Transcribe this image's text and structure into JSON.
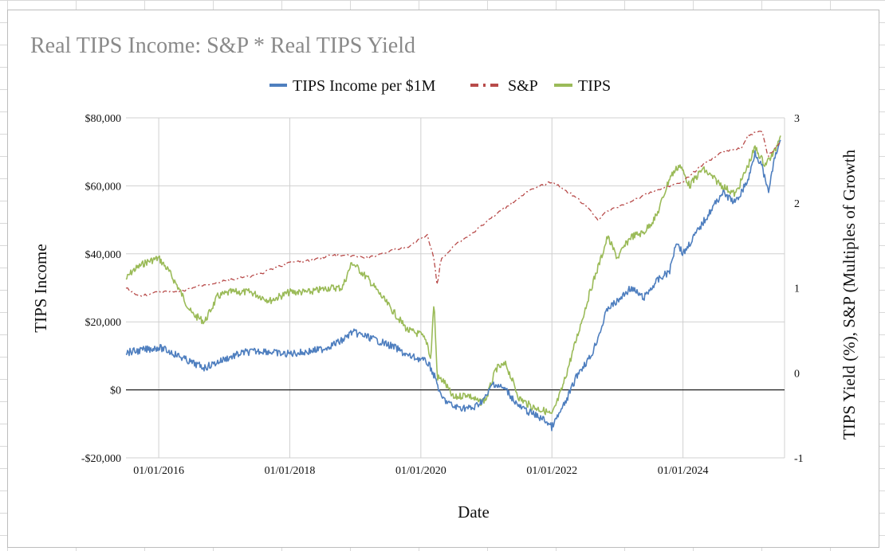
{
  "chart_data": {
    "type": "line",
    "title": "Real TIPS Income: S&P * Real TIPS Yield",
    "xlabel": "Date",
    "ylabel": "TIPS Income",
    "y2label": "TIPS Yield (%), S&P (Multiples of Growth",
    "ylim": [
      -20000,
      80000
    ],
    "y2lim": [
      -1,
      3
    ],
    "xlim": [
      2015.5,
      2025.55
    ],
    "y_ticks": [
      {
        "value": 80000,
        "label": "$80,000"
      },
      {
        "value": 60000,
        "label": "$60,000"
      },
      {
        "value": 40000,
        "label": "$40,000"
      },
      {
        "value": 20000,
        "label": "$20,000"
      },
      {
        "value": 0,
        "label": "$0"
      },
      {
        "value": -20000,
        "label": "-$20,000"
      }
    ],
    "y2_ticks": [
      {
        "value": 3,
        "label": "3"
      },
      {
        "value": 2,
        "label": "2"
      },
      {
        "value": 1,
        "label": "1"
      },
      {
        "value": 0,
        "label": "0"
      },
      {
        "value": -1,
        "label": "-1"
      }
    ],
    "x_ticks": [
      {
        "value": 2016,
        "label": "01/01/2016"
      },
      {
        "value": 2018,
        "label": "01/01/2018"
      },
      {
        "value": 2020,
        "label": "01/01/2020"
      },
      {
        "value": 2022,
        "label": "01/01/2022"
      },
      {
        "value": 2024,
        "label": "01/01/2024"
      }
    ],
    "grid": true,
    "legend_position": "top-center",
    "series": [
      {
        "name": "TIPS Income per $1M",
        "axis": "left",
        "color": "#4f7fbf",
        "style": "solid",
        "x": [
          2015.5,
          2015.7,
          2016.0,
          2016.2,
          2016.5,
          2016.7,
          2017.0,
          2017.3,
          2017.6,
          2017.9,
          2018.2,
          2018.5,
          2018.8,
          2018.95,
          2019.2,
          2019.4,
          2019.6,
          2019.8,
          2020.0,
          2020.1,
          2020.15,
          2020.25,
          2020.3,
          2020.5,
          2020.8,
          2021.0,
          2021.1,
          2021.3,
          2021.5,
          2021.7,
          2021.9,
          2022.0,
          2022.2,
          2022.4,
          2022.6,
          2022.75,
          2022.85,
          2023.0,
          2023.2,
          2023.4,
          2023.6,
          2023.8,
          2023.9,
          2024.0,
          2024.2,
          2024.4,
          2024.6,
          2024.8,
          2025.0,
          2025.1,
          2025.2,
          2025.3,
          2025.4,
          2025.5
        ],
        "y": [
          11000,
          11500,
          12500,
          11000,
          8000,
          6500,
          9000,
          11000,
          11500,
          10500,
          11000,
          12000,
          14500,
          17000,
          15500,
          14000,
          12500,
          10000,
          9000,
          8000,
          6500,
          2000,
          -2000,
          -5000,
          -5500,
          -2000,
          2000,
          0,
          -5000,
          -7000,
          -9000,
          -11000,
          -4000,
          5000,
          10000,
          18000,
          24000,
          26000,
          30000,
          27000,
          32000,
          35000,
          44000,
          40000,
          46000,
          52000,
          58000,
          55000,
          62000,
          70000,
          66000,
          58000,
          68000,
          74000
        ]
      },
      {
        "name": "S&P",
        "axis": "right",
        "color": "#b84b4a",
        "style": "dash-dot",
        "x": [
          2015.5,
          2015.7,
          2016.0,
          2016.3,
          2016.6,
          2017.0,
          2017.5,
          2018.0,
          2018.3,
          2018.6,
          2018.9,
          2019.2,
          2019.5,
          2019.8,
          2020.0,
          2020.1,
          2020.2,
          2020.25,
          2020.3,
          2020.5,
          2020.8,
          2021.0,
          2021.3,
          2021.6,
          2021.9,
          2022.0,
          2022.3,
          2022.5,
          2022.7,
          2022.8,
          2023.0,
          2023.3,
          2023.6,
          2023.8,
          2024.0,
          2024.3,
          2024.6,
          2024.9,
          2025.0,
          2025.2,
          2025.3,
          2025.5
        ],
        "y": [
          1.0,
          0.9,
          0.95,
          0.95,
          1.02,
          1.08,
          1.15,
          1.3,
          1.32,
          1.38,
          1.38,
          1.35,
          1.43,
          1.48,
          1.58,
          1.62,
          1.35,
          1.0,
          1.32,
          1.5,
          1.65,
          1.78,
          1.95,
          2.12,
          2.22,
          2.25,
          2.1,
          1.98,
          1.8,
          1.88,
          1.95,
          2.05,
          2.15,
          2.2,
          2.25,
          2.45,
          2.6,
          2.65,
          2.8,
          2.85,
          2.55,
          2.72
        ]
      },
      {
        "name": "TIPS",
        "axis": "right",
        "color": "#9bbb59",
        "style": "solid",
        "x": [
          2015.5,
          2015.6,
          2015.8,
          2016.0,
          2016.15,
          2016.3,
          2016.5,
          2016.7,
          2016.9,
          2017.1,
          2017.4,
          2017.7,
          2018.0,
          2018.3,
          2018.6,
          2018.8,
          2018.95,
          2019.2,
          2019.4,
          2019.6,
          2019.8,
          2020.0,
          2020.1,
          2020.15,
          2020.2,
          2020.25,
          2020.35,
          2020.5,
          2020.7,
          2020.9,
          2021.0,
          2021.15,
          2021.3,
          2021.5,
          2021.7,
          2021.9,
          2022.0,
          2022.15,
          2022.3,
          2022.45,
          2022.6,
          2022.75,
          2022.85,
          2023.0,
          2023.2,
          2023.4,
          2023.6,
          2023.8,
          2023.95,
          2024.1,
          2024.3,
          2024.6,
          2024.8,
          2025.0,
          2025.1,
          2025.25,
          2025.4,
          2025.5
        ],
        "y": [
          1.1,
          1.2,
          1.3,
          1.35,
          1.2,
          1.0,
          0.7,
          0.6,
          0.9,
          0.95,
          0.95,
          0.85,
          0.95,
          0.95,
          1.0,
          1.0,
          1.3,
          1.1,
          0.9,
          0.7,
          0.5,
          0.45,
          0.35,
          0.15,
          0.85,
          -0.05,
          -0.1,
          -0.3,
          -0.25,
          -0.35,
          -0.3,
          0.05,
          0.1,
          -0.3,
          -0.4,
          -0.45,
          -0.5,
          -0.2,
          0.2,
          0.6,
          1.0,
          1.35,
          1.6,
          1.35,
          1.6,
          1.65,
          1.85,
          2.3,
          2.45,
          2.2,
          2.4,
          2.2,
          2.1,
          2.45,
          2.65,
          2.45,
          2.6,
          2.85
        ]
      }
    ]
  }
}
